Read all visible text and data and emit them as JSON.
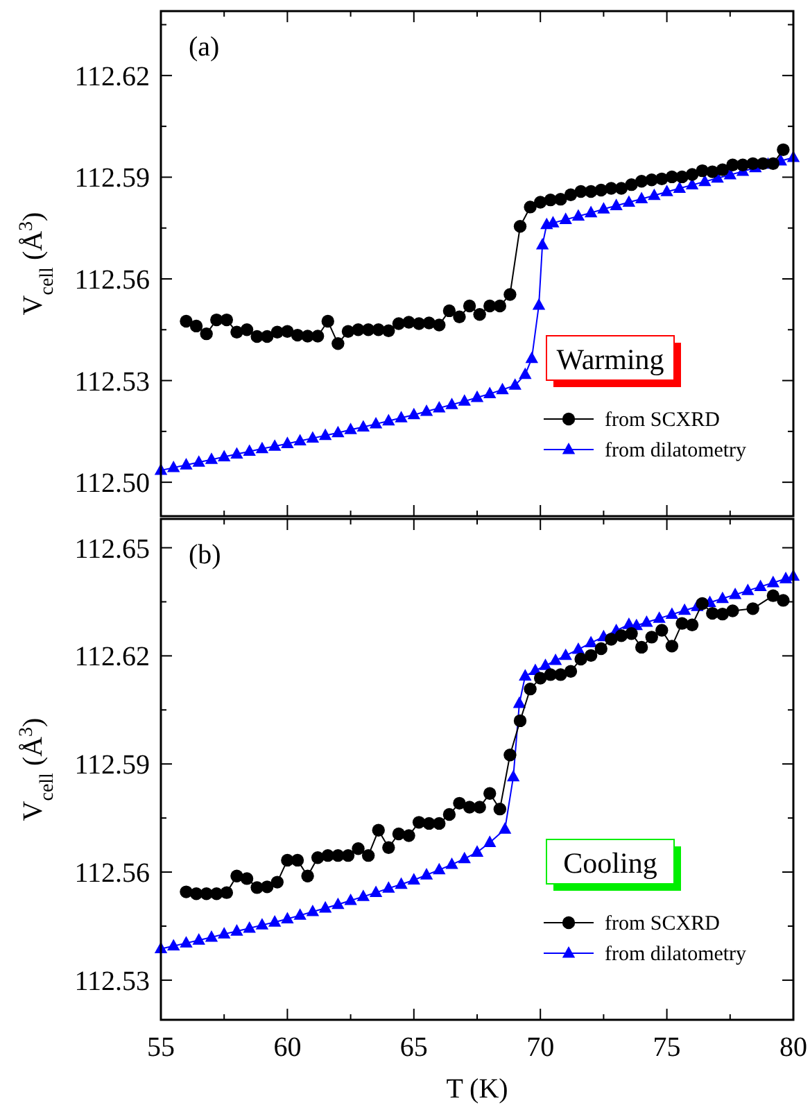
{
  "chart_data": [
    {
      "type": "line",
      "title": "(a)",
      "ylabel": "V$_{cell}$ (Å$^{3}$)",
      "xlim": [
        55,
        80
      ],
      "ylim": [
        112.49,
        112.639
      ],
      "xticks": [
        55,
        {
          "value": 57.5,
          "label": null
        },
        60,
        {
          "value": 62.5,
          "label": null
        },
        65,
        {
          "value": 67.5,
          "label": null
        },
        70,
        {
          "value": 72.5,
          "label": null
        },
        75,
        {
          "value": 77.5,
          "label": null
        },
        80
      ],
      "yticks": [
        {
          "value": 112.5,
          "label": "112.50"
        },
        {
          "value": 112.515,
          "label": null
        },
        112.53,
        {
          "value": 112.545,
          "label": null
        },
        112.56,
        {
          "value": 112.575,
          "label": null
        },
        112.59,
        {
          "value": 112.605,
          "label": null
        },
        112.62,
        {
          "value": 112.635,
          "label": null
        }
      ],
      "tick_labels": "y",
      "grid": false,
      "legend": "bottom right",
      "line_style": "solid",
      "annotations": [
        "Warming"
      ],
      "series": [
        {
          "name": "from SCXRD",
          "color": "#000000",
          "marker": "circle",
          "x": [
            56.0,
            56.4,
            56.8,
            57.2,
            57.6,
            58.0,
            58.4,
            58.8,
            59.2,
            59.6,
            60.0,
            60.4,
            60.8,
            61.2,
            61.6,
            62.0,
            62.4,
            62.8,
            63.2,
            63.6,
            64.0,
            64.4,
            64.8,
            65.2,
            65.6,
            66.0,
            66.4,
            66.8,
            67.2,
            67.6,
            68.0,
            68.4,
            68.8,
            69.2,
            69.6,
            70.0,
            70.4,
            70.8,
            71.2,
            71.6,
            72.0,
            72.4,
            72.8,
            73.2,
            73.6,
            74.0,
            74.4,
            74.8,
            75.2,
            75.6,
            76.0,
            76.4,
            76.8,
            77.2,
            77.6,
            78.0,
            78.4,
            78.8,
            79.2,
            79.6
          ],
          "values": [
            112.5475,
            112.5461,
            112.5438,
            112.5479,
            112.5479,
            112.5443,
            112.545,
            112.543,
            112.543,
            112.5443,
            112.5445,
            112.5434,
            112.5431,
            112.5431,
            112.5475,
            112.5409,
            112.5445,
            112.545,
            112.545,
            112.545,
            112.5447,
            112.5468,
            112.5472,
            112.5468,
            112.547,
            112.5464,
            112.5506,
            112.5488,
            112.552,
            112.5495,
            112.552,
            112.552,
            112.5554,
            112.5755,
            112.5812,
            112.5826,
            112.5833,
            112.5835,
            112.5848,
            112.5858,
            112.5858,
            112.5862,
            112.5867,
            112.5867,
            112.5878,
            112.5888,
            112.5892,
            112.5895,
            112.5901,
            112.5901,
            112.5908,
            112.5919,
            112.5916,
            112.5922,
            112.5936,
            112.5936,
            112.594,
            112.594,
            112.594,
            112.5981
          ]
        },
        {
          "name": "from dilatometry",
          "color": "#0000ff",
          "marker": "triangle",
          "x": [
            55,
            55.5,
            56,
            56.5,
            57,
            57.5,
            58,
            58.5,
            59,
            59.5,
            60,
            60.5,
            61,
            61.5,
            62,
            62.5,
            63,
            63.5,
            64,
            64.5,
            65,
            65.5,
            66,
            66.5,
            67,
            67.5,
            68,
            68.5,
            69,
            69.4,
            69.66,
            69.94,
            70.08,
            70.25,
            70.5,
            71,
            71.5,
            72,
            72.5,
            73,
            73.5,
            74,
            74.5,
            75,
            75.5,
            76,
            76.5,
            77,
            77.5,
            78,
            78.5,
            79,
            79.5,
            80
          ],
          "values": [
            112.5035,
            112.5043,
            112.5051,
            112.5059,
            112.5067,
            112.5075,
            112.5083,
            112.5091,
            112.5099,
            112.5106,
            112.5114,
            112.5122,
            112.513,
            112.5138,
            112.5146,
            112.5155,
            112.5163,
            112.5172,
            112.5181,
            112.519,
            112.5199,
            112.5209,
            112.5219,
            112.5229,
            112.5239,
            112.525,
            112.5261,
            112.5273,
            112.5286,
            112.5318,
            112.5365,
            112.5522,
            112.57,
            112.576,
            112.5765,
            112.5775,
            112.5785,
            112.5795,
            112.5806,
            112.5816,
            112.5826,
            112.5836,
            112.5846,
            112.5857,
            112.5867,
            112.5877,
            112.5887,
            112.5897,
            112.5907,
            112.5917,
            112.5928,
            112.5938,
            112.5948,
            112.5958
          ]
        }
      ]
    },
    {
      "type": "line",
      "title": "(b)",
      "xlabel": "T (K)",
      "ylabel": "V$_{cell}$ (Å$^{3}$)",
      "xlim": [
        55,
        80
      ],
      "ylim": [
        112.519,
        112.658
      ],
      "xticks": [
        55,
        {
          "value": 57.5,
          "label": null
        },
        60,
        {
          "value": 62.5,
          "label": null
        },
        65,
        {
          "value": 67.5,
          "label": null
        },
        70,
        {
          "value": 72.5,
          "label": null
        },
        75,
        {
          "value": 77.5,
          "label": null
        },
        80
      ],
      "yticks": [
        112.53,
        {
          "value": 112.545,
          "label": null
        },
        112.56,
        {
          "value": 112.575,
          "label": null
        },
        112.59,
        {
          "value": 112.605,
          "label": null
        },
        112.62,
        {
          "value": 112.635,
          "label": null
        },
        112.65
      ],
      "grid": false,
      "legend": "bottom right",
      "line_style": "solid",
      "annotations": [
        "Cooling"
      ],
      "series": [
        {
          "name": "from SCXRD",
          "color": "#000000",
          "marker": "circle",
          "x": [
            56.0,
            56.4,
            56.8,
            57.2,
            57.6,
            58.0,
            58.4,
            58.8,
            59.2,
            59.6,
            60.0,
            60.4,
            60.8,
            61.2,
            61.6,
            62.0,
            62.4,
            62.8,
            63.2,
            63.6,
            64.0,
            64.4,
            64.8,
            65.2,
            65.6,
            66.0,
            66.4,
            66.8,
            67.2,
            67.6,
            68.0,
            68.4,
            68.8,
            69.2,
            69.6,
            70.0,
            70.4,
            70.8,
            71.2,
            71.6,
            72.0,
            72.4,
            72.8,
            73.2,
            73.6,
            74.0,
            74.4,
            74.8,
            75.2,
            75.6,
            76.0,
            76.4,
            76.8,
            77.2,
            77.6,
            78.4,
            79.2,
            79.6
          ],
          "values": [
            112.5545,
            112.554,
            112.554,
            112.554,
            112.5543,
            112.5589,
            112.5582,
            112.5557,
            112.5559,
            112.5572,
            112.5633,
            112.5633,
            112.5589,
            112.564,
            112.5646,
            112.5646,
            112.5646,
            112.5665,
            112.5646,
            112.5716,
            112.5668,
            112.5706,
            112.5701,
            112.5738,
            112.5735,
            112.5735,
            112.576,
            112.5791,
            112.578,
            112.578,
            112.5818,
            112.5775,
            112.5925,
            112.602,
            112.6108,
            112.6138,
            112.6148,
            112.6148,
            112.6157,
            112.6191,
            112.6201,
            112.622,
            112.6246,
            112.6256,
            112.6262,
            112.6224,
            112.6252,
            112.6271,
            112.6227,
            112.629,
            112.6286,
            112.6345,
            112.6318,
            112.6316,
            112.6325,
            112.6331,
            112.6367,
            112.6354
          ]
        },
        {
          "name": "from dilatometry",
          "color": "#0000ff",
          "marker": "triangle",
          "x": [
            55,
            55.5,
            56,
            56.5,
            57,
            57.5,
            58,
            58.5,
            59,
            59.5,
            60,
            60.5,
            61,
            61.5,
            62,
            62.5,
            63,
            63.5,
            64,
            64.5,
            65,
            65.5,
            66,
            66.5,
            67,
            67.5,
            68,
            68.6,
            68.93,
            69.17,
            69.4,
            69.8,
            70.2,
            70.6,
            71,
            71.5,
            72,
            72.5,
            73,
            73.5,
            73.8,
            74.2,
            74.7,
            75.2,
            75.7,
            76.2,
            76.7,
            77.2,
            77.7,
            78.2,
            78.7,
            79.2,
            79.7,
            80
          ],
          "values": [
            112.5387,
            112.5395,
            112.5403,
            112.5411,
            112.5419,
            112.5428,
            112.5436,
            112.5444,
            112.5453,
            112.5461,
            112.547,
            112.548,
            112.549,
            112.55,
            112.551,
            112.5521,
            112.5532,
            112.5543,
            112.5555,
            112.5566,
            112.5578,
            112.5592,
            112.5606,
            112.5621,
            112.5637,
            112.5655,
            112.5682,
            112.5719,
            112.5864,
            112.6068,
            112.6144,
            112.6159,
            112.6173,
            112.6187,
            112.6201,
            112.6218,
            112.6236,
            112.6253,
            112.627,
            112.6287,
            112.6284,
            112.6293,
            112.6304,
            112.6315,
            112.6326,
            112.6337,
            112.6348,
            112.6359,
            112.637,
            112.6381,
            112.6392,
            112.6403,
            112.6414,
            112.6421
          ]
        }
      ]
    }
  ]
}
